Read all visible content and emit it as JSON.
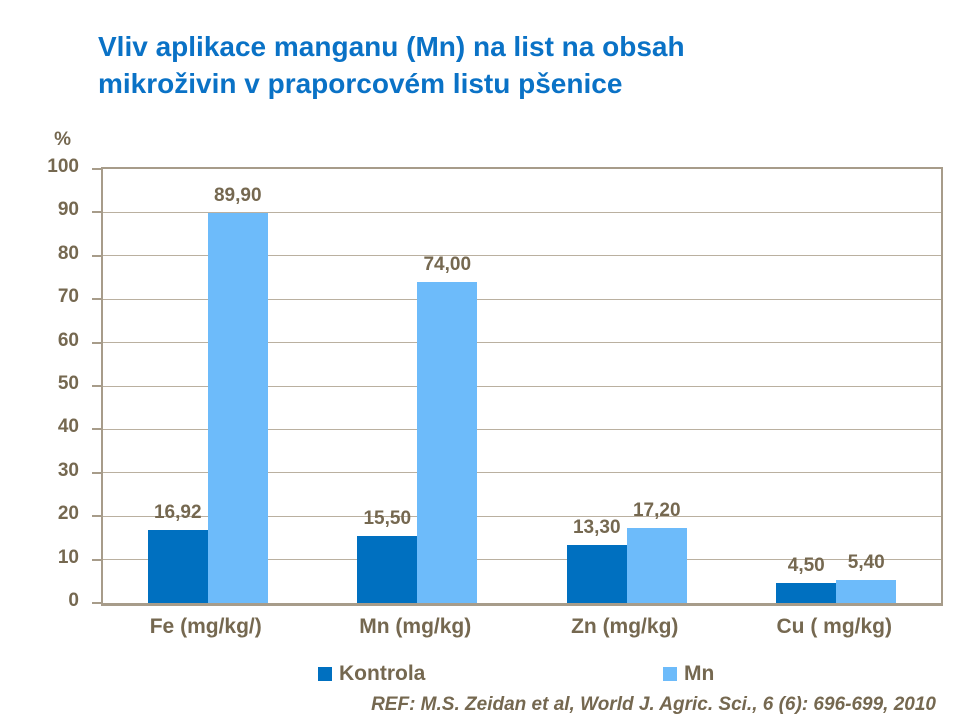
{
  "title": {
    "line1": "Vliv aplikace manganu (Mn) na list na obsah",
    "line2": "mikroživin v praporcovém listu pšenice"
  },
  "footer": {
    "reference": "REF: M.S. Zeidan et al, World J. Agric. Sci., 6 (6): 696-699, 2010"
  },
  "colors": {
    "title_blue": "#0A72C6",
    "kontrola_bar": "#0070C0",
    "mn_bar": "#6DBBFA",
    "axis_text": "#756850",
    "gridline": "#BAB0A0",
    "axis_border": "#A79C8A"
  },
  "chart_data": {
    "type": "bar",
    "title": "Vliv aplikace manganu (Mn) na list na obsah mikroživin v praporcovém listu pšenice",
    "unit_label": "%",
    "xlabel": "",
    "ylabel": "%",
    "ylim": [
      0,
      100
    ],
    "ytick_step": 10,
    "ytick_labels": [
      "0",
      "10",
      "20",
      "30",
      "40",
      "50",
      "60",
      "70",
      "80",
      "90",
      "100"
    ],
    "grid": true,
    "legend_position": "bottom",
    "categories": [
      "Fe (mg/kg/)",
      "Mn (mg/kg)",
      "Zn (mg/kg)",
      "Cu ( mg/kg)"
    ],
    "series": [
      {
        "name": "Kontrola",
        "color": "#0070C0",
        "values": [
          16.92,
          15.5,
          13.3,
          4.5
        ],
        "value_labels": [
          "16,92",
          "15,50",
          "13,30",
          "4,50"
        ]
      },
      {
        "name": "Mn",
        "color": "#6DBBFA",
        "values": [
          89.9,
          74.0,
          17.2,
          5.4
        ],
        "value_labels": [
          "89,90",
          "74,00",
          "17,20",
          "5,40"
        ]
      }
    ]
  }
}
